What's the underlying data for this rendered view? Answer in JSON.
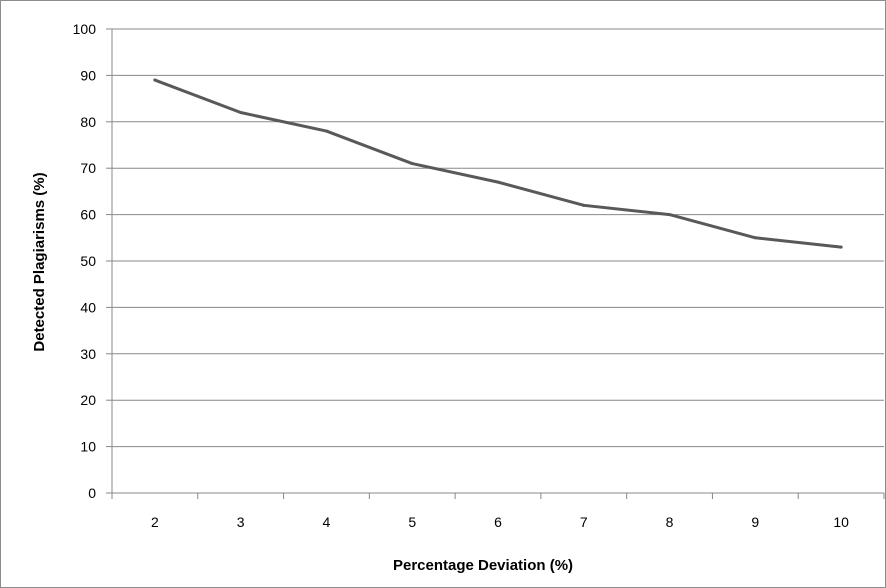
{
  "chart_data": {
    "type": "line",
    "title": "",
    "xlabel": "Percentage Deviation (%)",
    "ylabel": "Detected Plagiarisms (%)",
    "categories": [
      "2",
      "3",
      "4",
      "5",
      "6",
      "7",
      "8",
      "9",
      "10"
    ],
    "series": [
      {
        "values": [
          89,
          82,
          78,
          71,
          67,
          62,
          60,
          55,
          53
        ]
      }
    ],
    "ylim": [
      0,
      100
    ],
    "yticks": [
      0,
      10,
      20,
      30,
      40,
      50,
      60,
      70,
      80,
      90,
      100
    ],
    "grid": true,
    "legend": "none",
    "colors": {
      "line": "#595959",
      "grid": "#888888",
      "axis": "#888888",
      "frame": "#8c8c8c"
    }
  }
}
